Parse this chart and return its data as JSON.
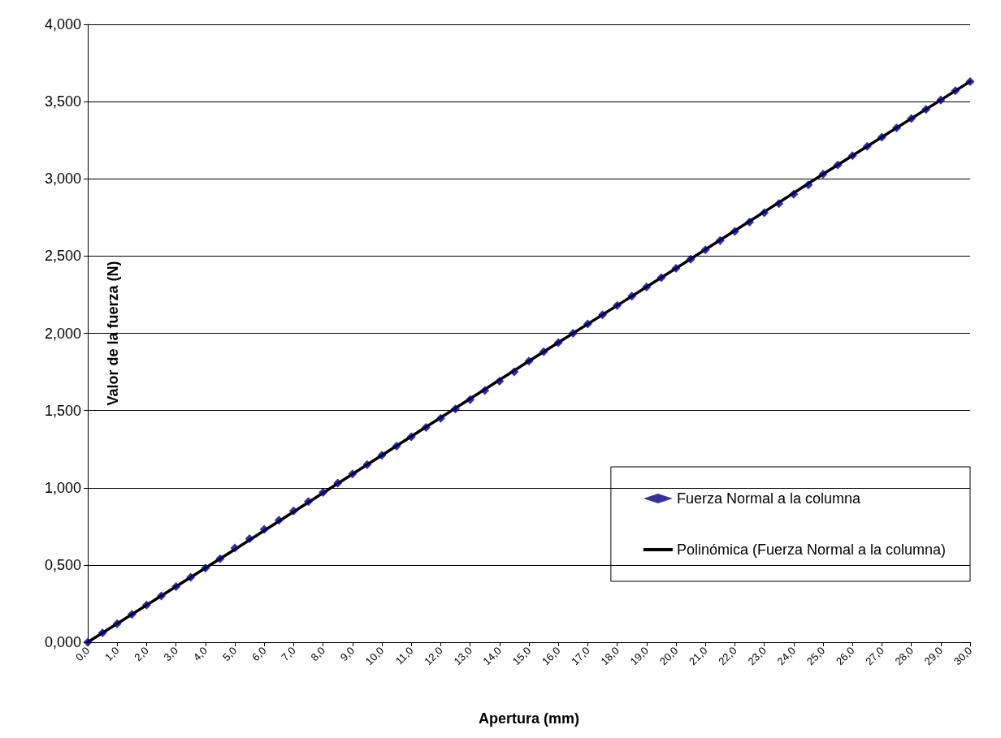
{
  "chart_data": {
    "type": "scatter",
    "xlabel": "Apertura (mm)",
    "ylabel": "Valor de la fuerza (N)",
    "xlim": [
      0,
      30
    ],
    "ylim": [
      0,
      4
    ],
    "xticks": [
      {
        "value": 0,
        "label": "0,0"
      },
      {
        "value": 1,
        "label": "1,0"
      },
      {
        "value": 2,
        "label": "2,0"
      },
      {
        "value": 3,
        "label": "3,0"
      },
      {
        "value": 4,
        "label": "4,0"
      },
      {
        "value": 5,
        "label": "5,0"
      },
      {
        "value": 6,
        "label": "6,0"
      },
      {
        "value": 7,
        "label": "7,0"
      },
      {
        "value": 8,
        "label": "8,0"
      },
      {
        "value": 9,
        "label": "9,0"
      },
      {
        "value": 10,
        "label": "10,0"
      },
      {
        "value": 11,
        "label": "11,0"
      },
      {
        "value": 12,
        "label": "12,0"
      },
      {
        "value": 13,
        "label": "13,0"
      },
      {
        "value": 14,
        "label": "14,0"
      },
      {
        "value": 15,
        "label": "15,0"
      },
      {
        "value": 16,
        "label": "16,0"
      },
      {
        "value": 17,
        "label": "17,0"
      },
      {
        "value": 18,
        "label": "18,0"
      },
      {
        "value": 19,
        "label": "19,0"
      },
      {
        "value": 20,
        "label": "20,0"
      },
      {
        "value": 21,
        "label": "21,0"
      },
      {
        "value": 22,
        "label": "22,0"
      },
      {
        "value": 23,
        "label": "23,0"
      },
      {
        "value": 24,
        "label": "24,0"
      },
      {
        "value": 25,
        "label": "25,0"
      },
      {
        "value": 26,
        "label": "26,0"
      },
      {
        "value": 27,
        "label": "27,0"
      },
      {
        "value": 28,
        "label": "28,0"
      },
      {
        "value": 29,
        "label": "29,0"
      },
      {
        "value": 30,
        "label": "30,0"
      }
    ],
    "yticks": [
      {
        "value": 0,
        "label": "0,000"
      },
      {
        "value": 0.5,
        "label": "0,500"
      },
      {
        "value": 1,
        "label": "1,000"
      },
      {
        "value": 1.5,
        "label": "1,500"
      },
      {
        "value": 2,
        "label": "2,000"
      },
      {
        "value": 2.5,
        "label": "2,500"
      },
      {
        "value": 3,
        "label": "3,000"
      },
      {
        "value": 3.5,
        "label": "3,500"
      },
      {
        "value": 4,
        "label": "4,000"
      }
    ],
    "grid": "y",
    "legend": "bottom right",
    "series": [
      {
        "name": "Fuerza Normal a la columna",
        "marker": "diamond",
        "color": "#000080",
        "x": [
          0,
          0.5,
          1,
          1.5,
          2,
          2.5,
          3,
          3.5,
          4,
          4.5,
          5,
          5.5,
          6,
          6.5,
          7,
          7.5,
          8,
          8.5,
          9,
          9.5,
          10,
          10.5,
          11,
          11.5,
          12,
          12.5,
          13,
          13.5,
          14,
          14.5,
          15,
          15.5,
          16,
          16.5,
          17,
          17.5,
          18,
          18.5,
          19,
          19.5,
          20,
          20.5,
          21,
          21.5,
          22,
          22.5,
          23,
          23.5,
          24,
          24.5,
          25,
          25.5,
          26,
          26.5,
          27,
          27.5,
          28,
          28.5,
          29,
          29.5,
          30
        ],
        "values": [
          0,
          0.06,
          0.12,
          0.18,
          0.24,
          0.3,
          0.36,
          0.42,
          0.48,
          0.54,
          0.61,
          0.67,
          0.73,
          0.79,
          0.85,
          0.91,
          0.97,
          1.03,
          1.09,
          1.15,
          1.21,
          1.27,
          1.33,
          1.39,
          1.45,
          1.51,
          1.57,
          1.63,
          1.69,
          1.75,
          1.82,
          1.88,
          1.94,
          2.0,
          2.06,
          2.12,
          2.18,
          2.24,
          2.3,
          2.36,
          2.42,
          2.48,
          2.54,
          2.6,
          2.66,
          2.72,
          2.78,
          2.84,
          2.9,
          2.96,
          3.03,
          3.09,
          3.15,
          3.21,
          3.27,
          3.33,
          3.39,
          3.45,
          3.51,
          3.57,
          3.63
        ]
      },
      {
        "name": "Polinómica (Fuerza Normal a la columna)",
        "type": "line",
        "marker": "none",
        "color": "#000000",
        "line_style": "solid",
        "x": [
          0,
          5,
          10,
          15,
          20,
          25,
          30
        ],
        "values": [
          0,
          0.6,
          1.21,
          1.82,
          2.42,
          3.03,
          3.63
        ]
      }
    ]
  }
}
